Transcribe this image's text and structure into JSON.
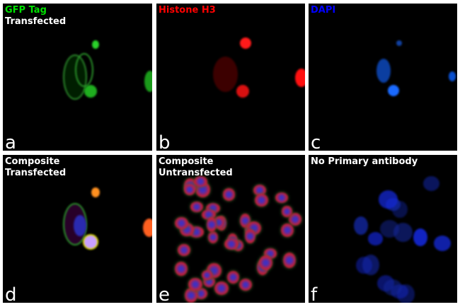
{
  "panels": [
    {
      "letter": "a",
      "title": "GFP Tag",
      "subtitle": "Transfected",
      "title_color": "#00e000"
    },
    {
      "letter": "b",
      "title": "Histone H3",
      "subtitle": "",
      "title_color": "#ff0000"
    },
    {
      "letter": "c",
      "title": "DAPI",
      "subtitle": "",
      "title_color": "#0000ff"
    },
    {
      "letter": "d",
      "title": "Composite",
      "subtitle": "Transfected",
      "title_color": "#ffffff"
    },
    {
      "letter": "e",
      "title": "Composite",
      "subtitle": "Untransfected",
      "title_color": "#ffffff"
    },
    {
      "letter": "f",
      "title": "No Primary antibody",
      "subtitle": "",
      "title_color": "#ffffff"
    }
  ],
  "colors": {
    "gfp": "#00e000",
    "histone": "#ff0000",
    "dapi": "#0000ff"
  }
}
